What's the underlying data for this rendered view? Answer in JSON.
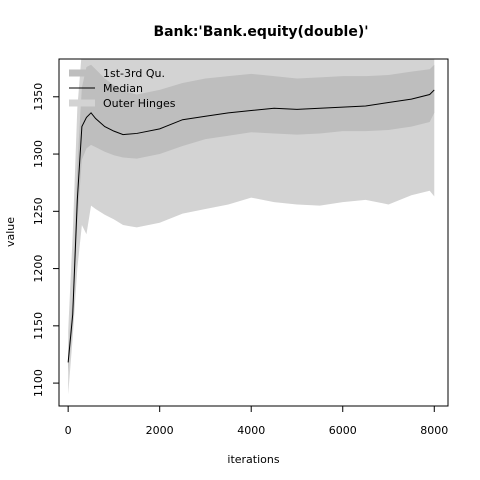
{
  "chart_data": {
    "type": "area",
    "title": "Bank:'Bank.equity(double)'",
    "xlabel": "iterations",
    "ylabel": "value",
    "xlim": [
      -200,
      8300
    ],
    "ylim": [
      1080,
      1383
    ],
    "xticks": [
      0,
      2000,
      4000,
      6000,
      8000
    ],
    "yticks": [
      1100,
      1150,
      1200,
      1250,
      1300,
      1350
    ],
    "xtick_labels": [
      "0",
      "2000",
      "4000",
      "6000",
      "8000"
    ],
    "ytick_labels": [
      "1100",
      "1150",
      "1200",
      "1250",
      "1300",
      "1350"
    ],
    "grid": false,
    "legend_position": "top-left",
    "x": [
      0,
      100,
      200,
      300,
      400,
      500,
      600,
      800,
      1000,
      1200,
      1500,
      2000,
      2500,
      3000,
      3500,
      4000,
      4500,
      5000,
      5500,
      6000,
      6500,
      7000,
      7500,
      7900,
      8000
    ],
    "series": [
      {
        "name": "Outer Hinges",
        "color": "#d3d3d3",
        "lower": [
          1090,
          1140,
          1200,
          1238,
          1230,
          1255,
          1252,
          1247,
          1243,
          1238,
          1236,
          1240,
          1248,
          1252,
          1256,
          1262,
          1258,
          1256,
          1255,
          1258,
          1260,
          1256,
          1264,
          1268,
          1263
        ],
        "upper": [
          1145,
          1230,
          1340,
          1390,
          1400,
          1400,
          1398,
          1392,
          1390,
          1388,
          1388,
          1390,
          1394,
          1396,
          1398,
          1400,
          1400,
          1400,
          1400,
          1400,
          1400,
          1400,
          1400,
          1400,
          1400
        ]
      },
      {
        "name": "1st-3rd Qu.",
        "color": "#bebebe",
        "lower": [
          1110,
          1150,
          1240,
          1295,
          1305,
          1308,
          1306,
          1302,
          1299,
          1297,
          1296,
          1300,
          1307,
          1313,
          1316,
          1319,
          1318,
          1317,
          1318,
          1320,
          1320,
          1321,
          1324,
          1328,
          1336
        ],
        "upper": [
          1128,
          1175,
          1290,
          1358,
          1376,
          1378,
          1374,
          1366,
          1360,
          1355,
          1352,
          1356,
          1362,
          1366,
          1368,
          1370,
          1368,
          1366,
          1367,
          1368,
          1368,
          1369,
          1372,
          1374,
          1378
        ]
      },
      {
        "name": "Median",
        "color": "#000000",
        "values": [
          1118,
          1160,
          1260,
          1324,
          1332,
          1336,
          1331,
          1324,
          1320,
          1317,
          1318,
          1322,
          1330,
          1333,
          1336,
          1338,
          1340,
          1339,
          1340,
          1341,
          1342,
          1345,
          1348,
          1352,
          1356
        ]
      }
    ]
  }
}
